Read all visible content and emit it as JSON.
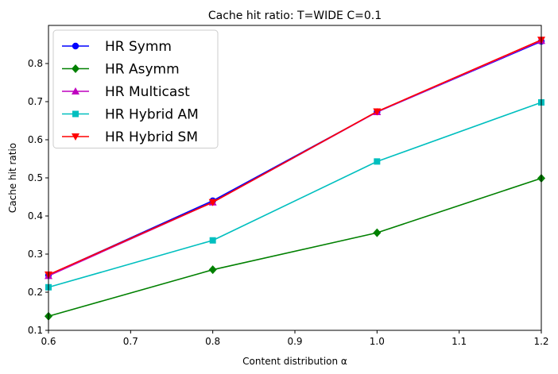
{
  "chart_data": {
    "type": "line",
    "title": "Cache hit ratio: T=WIDE C=0.1",
    "xlabel": "Content distribution α",
    "ylabel": "Cache hit ratio",
    "xlim": [
      0.6,
      1.2
    ],
    "ylim": [
      0.1,
      0.9
    ],
    "xticks": [
      "0.6",
      "0.7",
      "0.8",
      "0.9",
      "1.0",
      "1.1",
      "1.2"
    ],
    "yticks": [
      "0.1",
      "0.2",
      "0.3",
      "0.4",
      "0.5",
      "0.6",
      "0.7",
      "0.8"
    ],
    "grid": false,
    "legend_position": "top-left",
    "x": [
      0.6,
      0.8,
      1.0,
      1.2
    ],
    "series": [
      {
        "name": "HR Symm",
        "color": "#0000ff",
        "marker": "circle",
        "values": [
          0.245,
          0.44,
          0.673,
          0.858
        ]
      },
      {
        "name": "HR Asymm",
        "color": "#008000",
        "marker": "diamond",
        "values": [
          0.137,
          0.259,
          0.356,
          0.499
        ]
      },
      {
        "name": "HR Multicast",
        "color": "#bf00bf",
        "marker": "triangle-up",
        "values": [
          0.243,
          0.436,
          0.673,
          0.86
        ]
      },
      {
        "name": "HR Hybrid AM",
        "color": "#00bfbf",
        "marker": "square",
        "values": [
          0.213,
          0.336,
          0.543,
          0.698
        ]
      },
      {
        "name": "HR Hybrid SM",
        "color": "#ff0000",
        "marker": "triangle-down",
        "values": [
          0.246,
          0.436,
          0.674,
          0.862
        ]
      }
    ]
  }
}
